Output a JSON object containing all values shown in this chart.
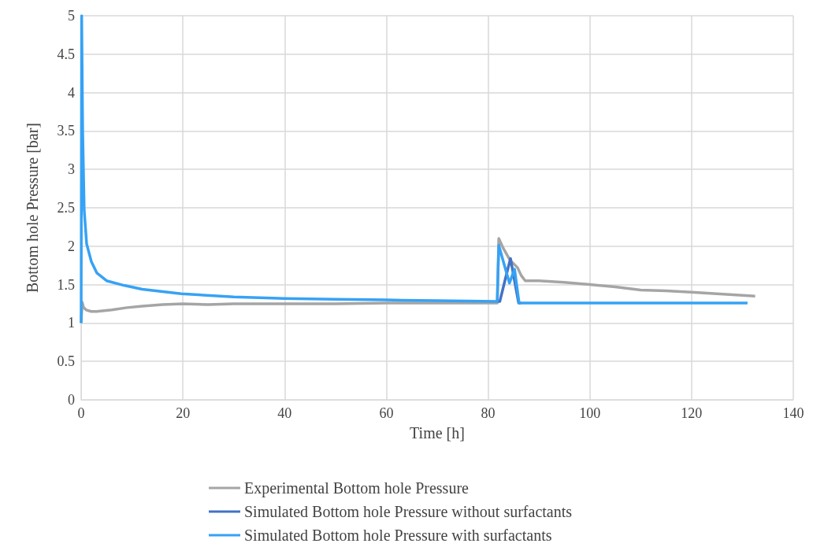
{
  "chart_data": {
    "type": "line",
    "xlabel": "Time [h]",
    "ylabel": "Bottom hole Pressure [bar]",
    "xlim": [
      0,
      140
    ],
    "xticks": [
      0,
      20,
      40,
      60,
      80,
      100,
      120,
      140
    ],
    "ylim": [
      0,
      5
    ],
    "yticks": [
      0,
      0.5,
      1,
      1.5,
      2,
      2.5,
      3,
      3.5,
      4,
      4.5,
      5
    ],
    "grid": true,
    "legend": "bottom",
    "marker": "none",
    "line_style": "solid",
    "series": [
      {
        "name": "Experimental Bottom hole Pressure",
        "color": "#a5a5a5",
        "x": [
          0,
          0.2,
          0.5,
          1,
          2,
          3,
          4.5,
          6,
          9,
          12,
          16,
          20,
          25,
          30,
          40,
          50,
          60,
          70,
          81.8,
          82.1,
          83,
          84.3,
          85.8,
          86.5,
          87.3,
          90,
          95,
          100,
          105,
          110,
          115,
          120,
          125,
          130,
          132.5
        ],
        "values": [
          1.0,
          1.27,
          1.2,
          1.17,
          1.15,
          1.15,
          1.16,
          1.17,
          1.2,
          1.22,
          1.24,
          1.25,
          1.24,
          1.25,
          1.25,
          1.25,
          1.26,
          1.26,
          1.26,
          2.1,
          1.97,
          1.82,
          1.72,
          1.62,
          1.55,
          1.55,
          1.53,
          1.5,
          1.47,
          1.43,
          1.42,
          1.4,
          1.38,
          1.36,
          1.35
        ]
      },
      {
        "name": "Simulated Bottom hole Pressure without surfactants",
        "color": "#4472c4",
        "x": [
          81.8,
          82.3,
          83.3,
          84.4,
          85.2,
          86,
          86.5
        ],
        "values": [
          1.28,
          1.28,
          1.55,
          1.84,
          1.55,
          1.26,
          1.26
        ]
      },
      {
        "name": "Simulated Bottom hole Pressure with surfactants",
        "color": "#36a2f5",
        "x": [
          0,
          0.1,
          0.3,
          0.6,
          1.08,
          2,
          3.1,
          5,
          8.4,
          12,
          19.7,
          30,
          40,
          50,
          60,
          70,
          81.8,
          82.1,
          84.2,
          85.2,
          86.1,
          100,
          131
        ],
        "values": [
          1.0,
          5,
          3.5,
          2.47,
          2.03,
          1.8,
          1.65,
          1.55,
          1.49,
          1.44,
          1.38,
          1.34,
          1.32,
          1.31,
          1.3,
          1.29,
          1.28,
          2.01,
          1.52,
          1.7,
          1.26,
          1.26,
          1.26
        ]
      }
    ]
  }
}
